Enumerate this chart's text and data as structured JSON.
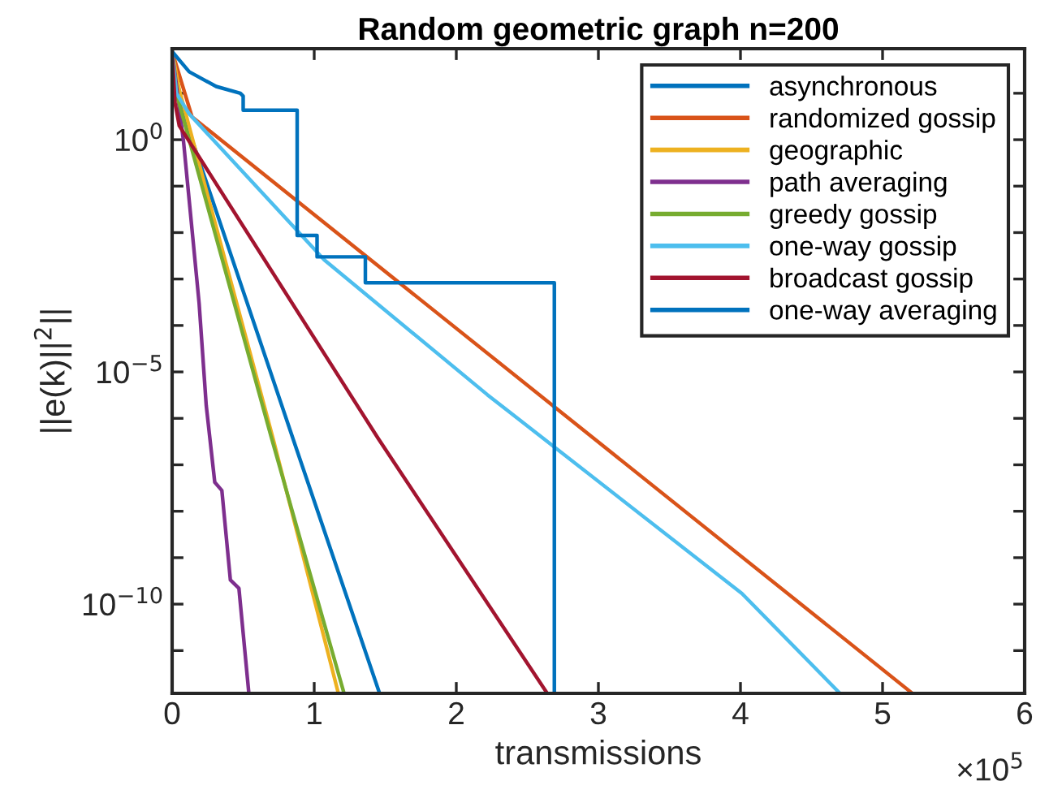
{
  "chart_data": {
    "type": "line",
    "title": "Random geometric graph n=200",
    "xlabel": "transmissions",
    "ylabel": "||e(k)||$^{2}$||",
    "log": "y",
    "grid": false,
    "legend": "top right",
    "marker": "none",
    "line_style": "solid",
    "xlim": [
      0,
      6
    ],
    "ylim": [
      1.2e-12,
      91
    ],
    "xticks": [
      0,
      1,
      2,
      3,
      4,
      5,
      6
    ],
    "yticks": [
      {
        "value": 1e-11,
        "label": null
      },
      {
        "value": 1e-10,
        "label": "10$^{−10}$"
      },
      {
        "value": 1e-09,
        "label": null
      },
      {
        "value": 1e-08,
        "label": null
      },
      {
        "value": 1e-07,
        "label": null
      },
      {
        "value": 1e-06,
        "label": null
      },
      {
        "value": 1e-05,
        "label": "10$^{−5}$"
      },
      {
        "value": 0.0001,
        "label": null
      },
      {
        "value": 0.001,
        "label": null
      },
      {
        "value": 0.01,
        "label": null
      },
      {
        "value": 0.1,
        "label": null
      },
      {
        "value": 1,
        "label": "10$^{0}$"
      },
      {
        "value": 10,
        "label": null
      }
    ],
    "annotations": [
      "×10$^{5}$"
    ],
    "series": [
      {
        "name": "asynchronous",
        "color": "#0072bd",
        "x": [
          0,
          0.03,
          0.85,
          1.46
        ],
        "values": [
          79,
          10,
          3.7e-07,
          1.2e-12
        ]
      },
      {
        "name": "randomized gossip",
        "color": "#d95319",
        "x": [
          0,
          0.14,
          5.21
        ],
        "values": [
          79,
          3.1,
          1.2e-12
        ]
      },
      {
        "name": "geographic",
        "color": "#edb120",
        "x": [
          0,
          0.05,
          0.71,
          1.17
        ],
        "values": [
          79,
          12,
          3.7e-07,
          1.2e-12
        ]
      },
      {
        "name": "path averaging",
        "color": "#7e2f8e",
        "x": [
          0,
          0.08,
          0.19,
          0.24,
          0.3,
          0.35,
          0.41,
          0.47,
          0.54
        ],
        "values": [
          79,
          0.93,
          0.0003,
          1.9e-06,
          4.2e-08,
          2.8e-08,
          3.3e-10,
          2.2e-10,
          1.2e-12
        ]
      },
      {
        "name": "greedy gossip",
        "color": "#77ac30",
        "x": [
          0,
          0.03,
          0.7,
          1.21
        ],
        "values": [
          79,
          10,
          3.7e-07,
          1.2e-12
        ]
      },
      {
        "name": "one-way gossip",
        "color": "#4dbeee",
        "x": [
          0,
          0.03,
          0.12,
          1.07,
          2.22,
          4.01,
          4.7
        ],
        "values": [
          79,
          10,
          3.6,
          0.0026,
          3.2e-06,
          1.7e-10,
          1.2e-12
        ]
      },
      {
        "name": "broadcast gossip",
        "color": "#a2142f",
        "x": [
          0,
          0.02,
          0.05,
          1.45,
          2.64
        ],
        "values": [
          79,
          6.3,
          2.0,
          3.7e-07,
          1.2e-12
        ]
      },
      {
        "name": "one-way averaging",
        "color": "#0072bd",
        "x": [
          0,
          0.12,
          0.31,
          0.48,
          0.5,
          0.5,
          0.88,
          0.88,
          1.02,
          1.02,
          1.36,
          1.36,
          2.69,
          2.69
        ],
        "values": [
          79,
          29,
          14,
          10,
          8.7,
          4.3,
          4.3,
          0.0087,
          0.0087,
          0.003,
          0.003,
          0.00083,
          0.00083,
          1.2e-12
        ]
      }
    ]
  }
}
